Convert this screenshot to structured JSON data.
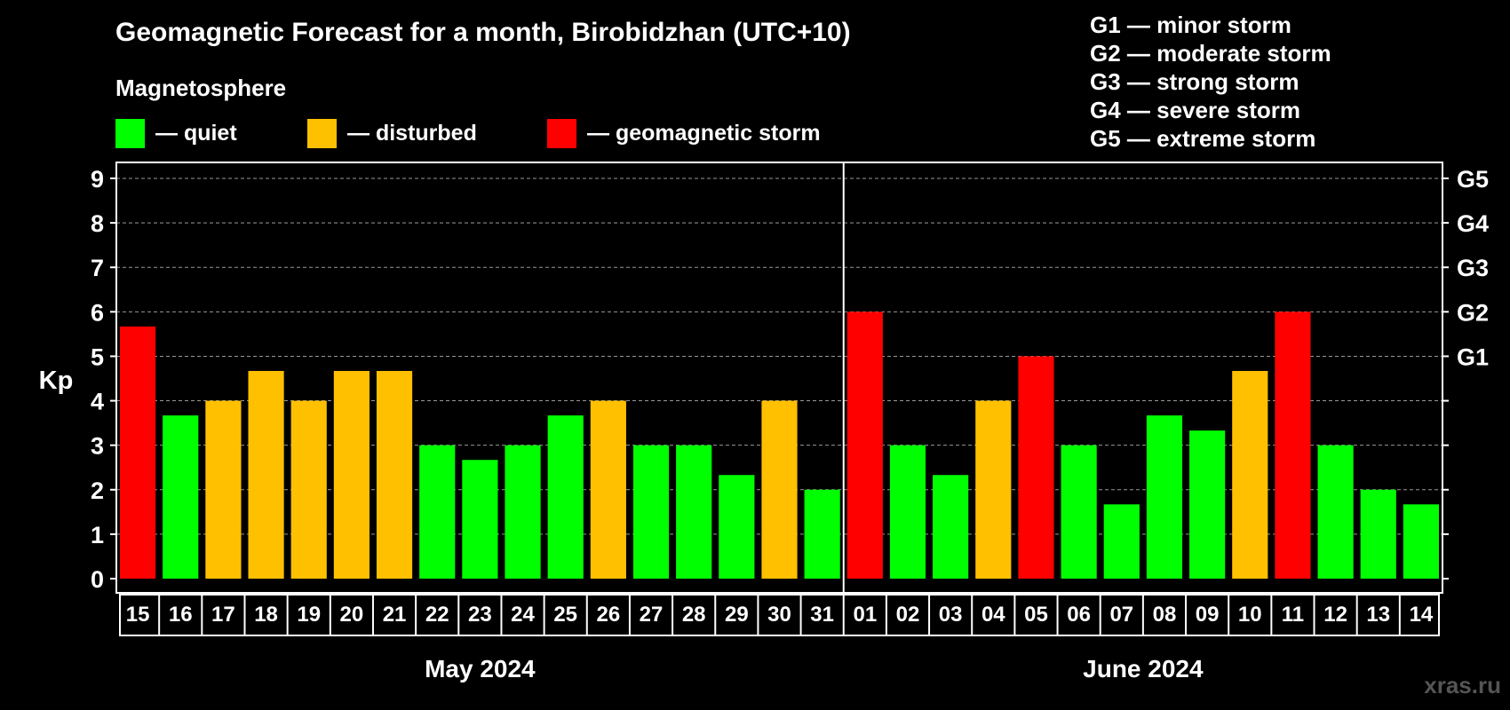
{
  "title": "Geomagnetic Forecast for a month, Birobidzhan (UTC+10)",
  "subtitle": "Magnetosphere",
  "legend": [
    {
      "label": "— quiet",
      "color": "#00ff00"
    },
    {
      "label": "— disturbed",
      "color": "#ffc000"
    },
    {
      "label": "— geomagnetic storm",
      "color": "#ff0000"
    }
  ],
  "storm_levels": [
    "G1 — minor storm",
    "G2 — moderate storm",
    "G3 — strong storm",
    "G4 — severe storm",
    "G5 — extreme storm"
  ],
  "watermark": "xras.ru",
  "chart_data": {
    "type": "bar",
    "title": "Geomagnetic Forecast for a month, Birobidzhan (UTC+10)",
    "ylabel": "Kp",
    "ylim": [
      0,
      9
    ],
    "yticks": [
      "0",
      "1",
      "2",
      "3",
      "4",
      "5",
      "6",
      "7",
      "8",
      "9"
    ],
    "right_ticks": [
      {
        "value": 5,
        "label": "G1"
      },
      {
        "value": 6,
        "label": "G2"
      },
      {
        "value": 7,
        "label": "G3"
      },
      {
        "value": 8,
        "label": "G4"
      },
      {
        "value": 9,
        "label": "G5"
      }
    ],
    "grid": true,
    "months": [
      {
        "label": "May 2024",
        "count": 17
      },
      {
        "label": "June 2024",
        "count": 14
      }
    ],
    "categories": [
      "15",
      "16",
      "17",
      "18",
      "19",
      "20",
      "21",
      "22",
      "23",
      "24",
      "25",
      "26",
      "27",
      "28",
      "29",
      "30",
      "31",
      "01",
      "02",
      "03",
      "04",
      "05",
      "06",
      "07",
      "08",
      "09",
      "10",
      "11",
      "12",
      "13",
      "14"
    ],
    "values": [
      5.67,
      3.67,
      4.0,
      4.67,
      4.0,
      4.67,
      4.67,
      3.0,
      2.67,
      3.0,
      3.67,
      4.0,
      3.0,
      3.0,
      2.33,
      4.0,
      2.0,
      6.0,
      3.0,
      2.33,
      4.0,
      5.0,
      3.0,
      1.67,
      3.67,
      3.33,
      4.67,
      6.0,
      3.0,
      2.0,
      1.67
    ],
    "levels": [
      "storm",
      "quiet",
      "disturbed",
      "disturbed",
      "disturbed",
      "disturbed",
      "disturbed",
      "quiet",
      "quiet",
      "quiet",
      "quiet",
      "disturbed",
      "quiet",
      "quiet",
      "quiet",
      "disturbed",
      "quiet",
      "storm",
      "quiet",
      "quiet",
      "disturbed",
      "storm",
      "quiet",
      "quiet",
      "quiet",
      "quiet",
      "disturbed",
      "storm",
      "quiet",
      "quiet",
      "quiet"
    ],
    "colors": {
      "quiet": "#00ff00",
      "disturbed": "#ffc000",
      "storm": "#ff0000"
    }
  }
}
